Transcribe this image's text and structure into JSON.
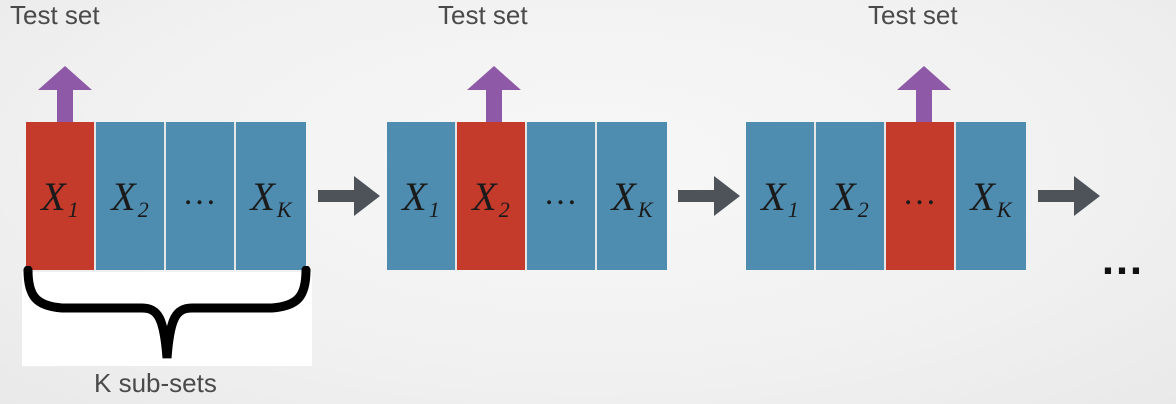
{
  "diagram": {
    "test_label": "Test set",
    "folds": [
      {
        "test_label": "Test set",
        "cells": [
          {
            "var": "X",
            "sub": "1",
            "role": "test"
          },
          {
            "var": "X",
            "sub": "2",
            "role": "train"
          },
          {
            "var": "…",
            "sub": "",
            "role": "train"
          },
          {
            "var": "X",
            "sub": "K",
            "role": "train"
          }
        ]
      },
      {
        "test_label": "Test set",
        "cells": [
          {
            "var": "X",
            "sub": "1",
            "role": "train"
          },
          {
            "var": "X",
            "sub": "2",
            "role": "test"
          },
          {
            "var": "…",
            "sub": "",
            "role": "train"
          },
          {
            "var": "X",
            "sub": "K",
            "role": "train"
          }
        ]
      },
      {
        "test_label": "Test set",
        "cells": [
          {
            "var": "X",
            "sub": "1",
            "role": "train"
          },
          {
            "var": "X",
            "sub": "2",
            "role": "train"
          },
          {
            "var": "…",
            "sub": "",
            "role": "test"
          },
          {
            "var": "X",
            "sub": "K",
            "role": "train"
          }
        ]
      }
    ],
    "subsets_label": "K sub-sets",
    "continuation": "…",
    "colors": {
      "test": "#c43a2b",
      "train": "#4e8db0",
      "up_arrow": "#8e5aa8",
      "next_arrow": "#4d5358"
    }
  }
}
